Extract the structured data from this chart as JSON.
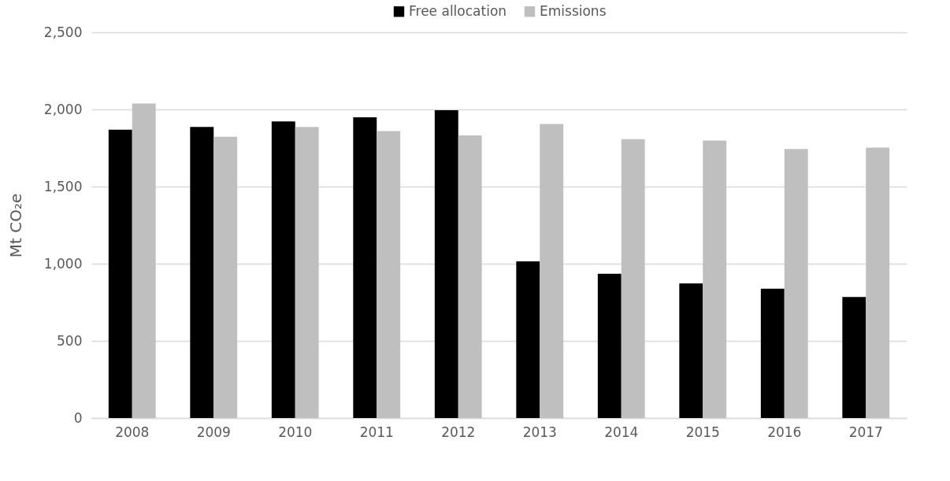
{
  "chart_data": {
    "type": "bar",
    "ylabel": "Mt CO₂e",
    "categories": [
      "2008",
      "2009",
      "2010",
      "2011",
      "2012",
      "2013",
      "2014",
      "2015",
      "2016",
      "2017"
    ],
    "series": [
      {
        "name": "Free allocation",
        "color": "#000000",
        "values": [
          1868,
          1886,
          1922,
          1949,
          1995,
          1015,
          935,
          873,
          838,
          784
        ]
      },
      {
        "name": "Emissions",
        "color": "#bfbfbf",
        "values": [
          2038,
          1823,
          1886,
          1860,
          1832,
          1905,
          1807,
          1798,
          1743,
          1753
        ]
      }
    ],
    "ylim": [
      0,
      2500
    ],
    "yticks": [
      0,
      500,
      {
        "value": 1000,
        "label": "1,000"
      },
      {
        "value": 1500,
        "label": "1,500"
      },
      {
        "value": 2000,
        "label": "2,000"
      },
      {
        "value": 2500,
        "label": "2,500"
      }
    ],
    "grid": "y",
    "legend": "top"
  }
}
